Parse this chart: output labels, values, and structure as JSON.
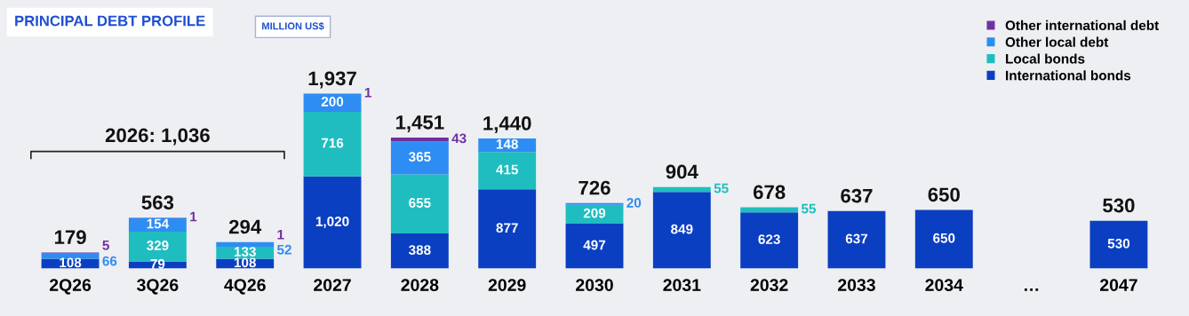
{
  "chart_data": {
    "type": "bar",
    "stacked": true,
    "title": "PRINCIPAL DEBT PROFILE",
    "subtitle": "MILLION US$",
    "categories": [
      "2Q26",
      "3Q26",
      "4Q26",
      "2027",
      "2028",
      "2029",
      "2030",
      "2031",
      "2032",
      "2033",
      "2034",
      "…",
      "2047"
    ],
    "series": [
      {
        "name": "International bonds",
        "color": "#0b3fc2",
        "values": [
          108,
          79,
          108,
          1020,
          388,
          877,
          497,
          849,
          623,
          637,
          650,
          null,
          530
        ],
        "value_labels": [
          "108",
          "79",
          "108",
          "1,020",
          "388",
          "877",
          "497",
          "849",
          "623",
          "637",
          "650",
          null,
          "530"
        ]
      },
      {
        "name": "Local bonds",
        "color": "#1fbdbf",
        "values": [
          0,
          329,
          133,
          716,
          655,
          415,
          209,
          55,
          55,
          0,
          0,
          null,
          0
        ],
        "value_labels": [
          null,
          "329",
          "133",
          "716",
          "655",
          "415",
          "209",
          "55",
          "55",
          null,
          null,
          null,
          null
        ]
      },
      {
        "name": "Other local debt",
        "color": "#2e8df2",
        "values": [
          66,
          154,
          52,
          200,
          365,
          148,
          20,
          0,
          0,
          0,
          0,
          null,
          0
        ],
        "value_labels": [
          "66",
          "154",
          "52",
          "200",
          "365",
          "148",
          "20",
          null,
          null,
          null,
          null,
          null,
          null
        ]
      },
      {
        "name": "Other international debt",
        "color": "#7030a0",
        "values": [
          5,
          1,
          1,
          1,
          43,
          0,
          0,
          0,
          0,
          0,
          0,
          null,
          0
        ],
        "value_labels": [
          "5",
          "1",
          "1",
          "1",
          "43",
          null,
          null,
          null,
          null,
          null,
          null,
          null,
          null
        ]
      }
    ],
    "totals": [
      "179",
      "563",
      "294",
      "1,937",
      "1,451",
      "1,440",
      "726",
      "904",
      "678",
      "637",
      "650",
      null,
      "530"
    ],
    "annotations": [
      "2026: 1,036"
    ],
    "legend": "top right",
    "grid": false
  }
}
